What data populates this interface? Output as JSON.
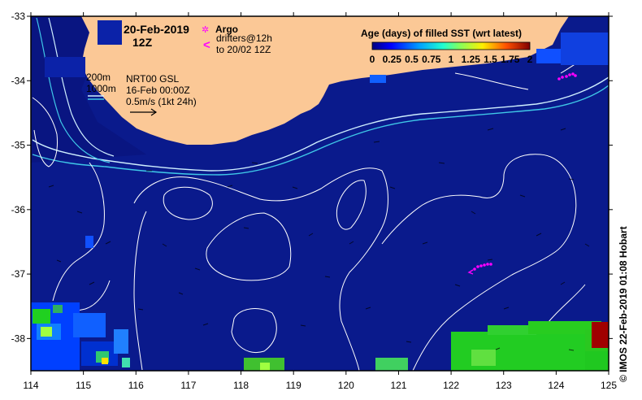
{
  "header": {
    "date": "20-Feb-2019",
    "time": "12Z"
  },
  "argo_legend": {
    "argo_label": "Argo",
    "drifters_line1": "drifters@12h",
    "drifters_line2": "to 20/02 12Z",
    "argo_symbol": "✲",
    "drifter_symbol": "<"
  },
  "isobath_legend": {
    "line1": "200m",
    "line2": "1000m"
  },
  "product_info": {
    "line1": "NRT00 GSL",
    "line2": "16-Feb 00:00Z",
    "line3": "0.5m/s (1kt 24h)"
  },
  "colorbar": {
    "title": "Age (days) of filled SST (wrt latest)",
    "ticks": [
      "0",
      "0.25",
      "0.5",
      "0.75",
      "1",
      "1.25",
      "1.5",
      "1.75",
      "2"
    ],
    "min": 0,
    "max": 2
  },
  "axes": {
    "x_ticks": [
      "114",
      "115",
      "116",
      "117",
      "118",
      "119",
      "120",
      "121",
      "122",
      "123",
      "124",
      "125"
    ],
    "y_ticks": [
      "-33",
      "-34",
      "-35",
      "-36",
      "-37",
      "-38"
    ],
    "lon_range": [
      114,
      125
    ],
    "lat_range": [
      -38.5,
      -33
    ]
  },
  "credit": "© IMOS 22-Feb-2019 01:08 Hobart",
  "colors": {
    "ocean": "#0a1a8c",
    "land": "#fbc896",
    "isobath_200": "#cfefff",
    "isobath_1000": "#3fc8e8",
    "contour": "#ffffff",
    "argo": "#ff00ff"
  }
}
